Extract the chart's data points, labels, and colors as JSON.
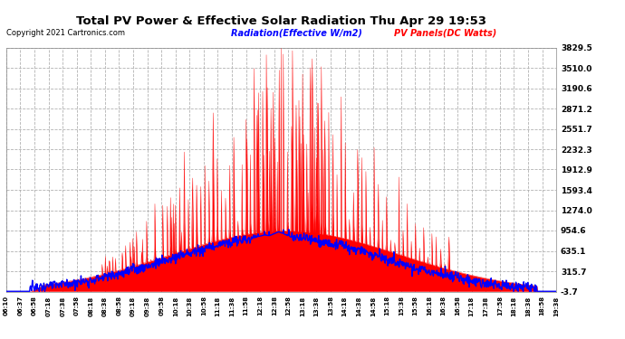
{
  "title": "Total PV Power & Effective Solar Radiation Thu Apr 29 19:53",
  "copyright": "Copyright 2021 Cartronics.com",
  "legend_radiation": "Radiation(Effective W/m2)",
  "legend_pv": "PV Panels(DC Watts)",
  "yticks": [
    3829.5,
    3510.0,
    3190.6,
    2871.2,
    2551.7,
    2232.3,
    1912.9,
    1593.4,
    1274.0,
    954.6,
    635.1,
    315.7,
    -3.7
  ],
  "ymin": -3.7,
  "ymax": 3829.5,
  "bg_color": "#ffffff",
  "plot_bg_color": "#ffffff",
  "grid_color": "#aaaaaa",
  "title_color": "black",
  "ytick_label_color": "black",
  "xtick_labels": [
    "06:10",
    "06:37",
    "06:58",
    "07:18",
    "07:38",
    "07:58",
    "08:18",
    "08:38",
    "08:58",
    "09:18",
    "09:38",
    "09:58",
    "10:18",
    "10:38",
    "10:58",
    "11:18",
    "11:38",
    "11:58",
    "12:18",
    "12:38",
    "12:58",
    "13:18",
    "13:38",
    "13:58",
    "14:18",
    "14:38",
    "14:58",
    "15:18",
    "15:38",
    "15:58",
    "16:18",
    "16:38",
    "16:58",
    "17:18",
    "17:38",
    "17:58",
    "18:18",
    "18:38",
    "18:58",
    "19:38"
  ],
  "pv_color": "red",
  "radiation_color": "blue"
}
